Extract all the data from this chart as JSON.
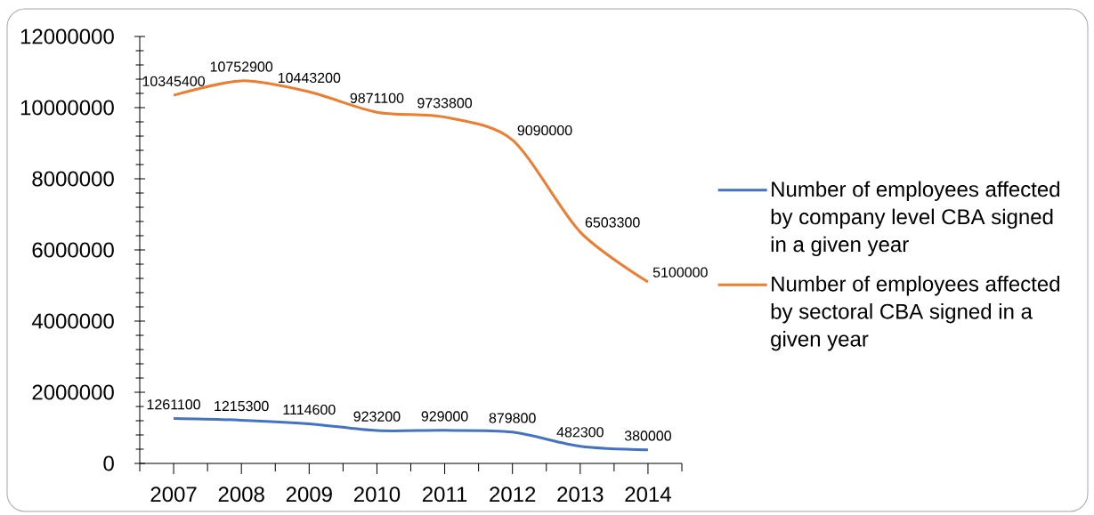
{
  "chart_data": {
    "type": "line",
    "categories": [
      "2007",
      "2008",
      "2009",
      "2010",
      "2011",
      "2012",
      "2013",
      "2014"
    ],
    "series": [
      {
        "name": "Number of employees affected by company level CBA signed in a given year",
        "color": "#4472c4",
        "values": [
          1261100,
          1215300,
          1114600,
          923200,
          929000,
          879800,
          482300,
          380000
        ]
      },
      {
        "name": "Number of employees affected by sectoral CBA signed in a given year",
        "color": "#ed7d31",
        "values": [
          10345400,
          10752900,
          10443200,
          9871100,
          9733800,
          9090000,
          6503300,
          5100000
        ]
      }
    ],
    "ylim": [
      0,
      12000000
    ],
    "yticks": [
      0,
      2000000,
      4000000,
      6000000,
      8000000,
      10000000,
      12000000
    ],
    "data_labels": true,
    "legend": "right",
    "grid": false,
    "marker": "none",
    "line_style": "solid"
  }
}
